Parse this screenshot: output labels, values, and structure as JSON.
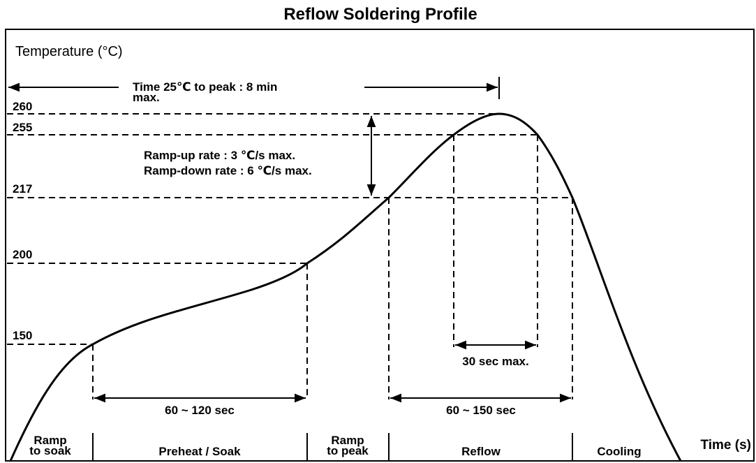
{
  "title": "Reflow Soldering Profile",
  "y_axis_label": "Temperature (°C)",
  "x_axis_label": "Time (s)",
  "temperature_levels": [
    "260",
    "255",
    "217",
    "200",
    "150"
  ],
  "time_to_peak": [
    "Time 25℃ to peak : 8 min",
    "max."
  ],
  "ramp_rates": [
    "Ramp-up rate : 3 ℃/s max.",
    "Ramp-down rate : 6 ℃/s max."
  ],
  "durations": {
    "soak": "60 ~ 120 sec",
    "reflow": "60 ~ 150 sec",
    "peak": "30 sec max."
  },
  "phases": [
    [
      "Ramp",
      "to soak"
    ],
    [
      "Preheat / Soak"
    ],
    [
      "Ramp",
      "to peak"
    ],
    [
      "Reflow"
    ],
    [
      "Cooling"
    ]
  ]
}
